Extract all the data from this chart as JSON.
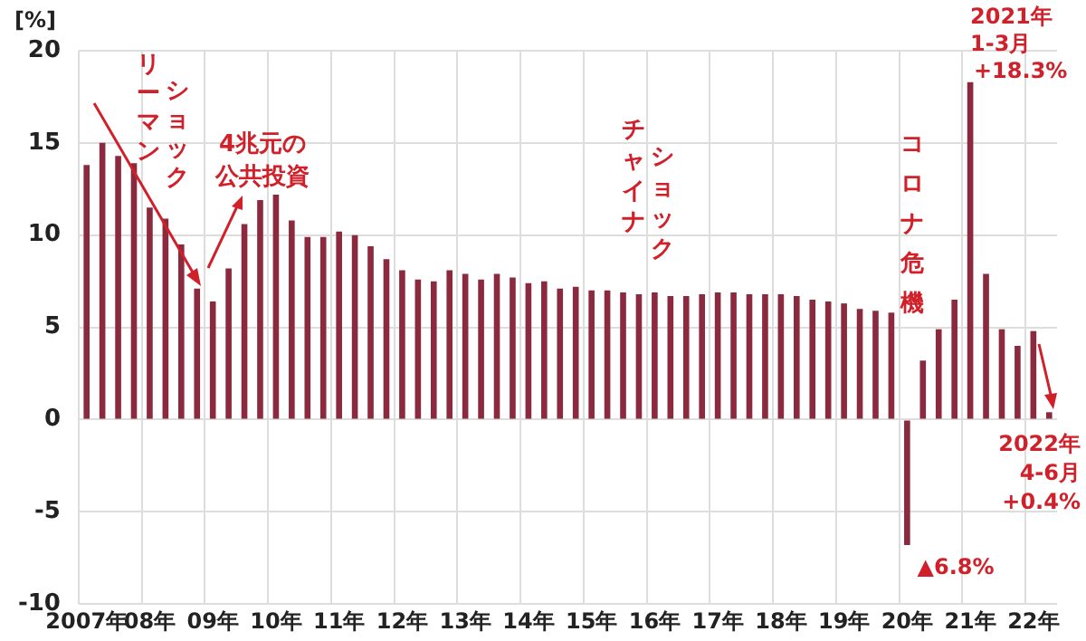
{
  "chart_data": {
    "type": "bar",
    "ylabel": "[%]",
    "categories": [
      "2007年",
      null,
      null,
      null,
      "08年",
      null,
      null,
      null,
      "09年",
      null,
      null,
      null,
      "10年",
      null,
      null,
      null,
      "11年",
      null,
      null,
      null,
      "12年",
      null,
      null,
      null,
      "13年",
      null,
      null,
      null,
      "14年",
      null,
      null,
      null,
      "15年",
      null,
      null,
      null,
      "16年",
      null,
      null,
      null,
      "17年",
      null,
      null,
      null,
      "18年",
      null,
      null,
      null,
      "19年",
      null,
      null,
      null,
      "20年",
      null,
      null,
      null,
      "21年",
      null,
      null,
      null,
      "22年",
      null
    ],
    "values": [
      13.8,
      15.0,
      14.3,
      13.9,
      11.5,
      10.9,
      9.5,
      7.1,
      6.4,
      8.2,
      10.6,
      11.9,
      12.2,
      10.8,
      9.9,
      9.9,
      10.2,
      10.0,
      9.4,
      8.7,
      8.1,
      7.6,
      7.5,
      8.1,
      7.9,
      7.6,
      7.9,
      7.7,
      7.4,
      7.5,
      7.1,
      7.2,
      7.0,
      7.0,
      6.9,
      6.8,
      6.9,
      6.7,
      6.7,
      6.8,
      6.9,
      6.9,
      6.8,
      6.8,
      6.8,
      6.7,
      6.5,
      6.4,
      6.3,
      6.0,
      5.9,
      5.8,
      -6.8,
      3.2,
      4.9,
      6.5,
      18.3,
      7.9,
      4.9,
      4.0,
      4.8,
      0.4
    ],
    "color": "#8b2a3e",
    "ylim": [
      -10,
      20
    ],
    "yticks": [
      -10,
      -5,
      0,
      5,
      10,
      15,
      20
    ],
    "grid": true,
    "annotations": [
      "リーマンショック",
      "4兆元の公共投資",
      "チャイナショック",
      "コロナ危機",
      "2021年",
      "1-3月",
      "+18.3%",
      "▲6.8%",
      "2022年",
      "4-6月",
      "+0.4%"
    ]
  }
}
